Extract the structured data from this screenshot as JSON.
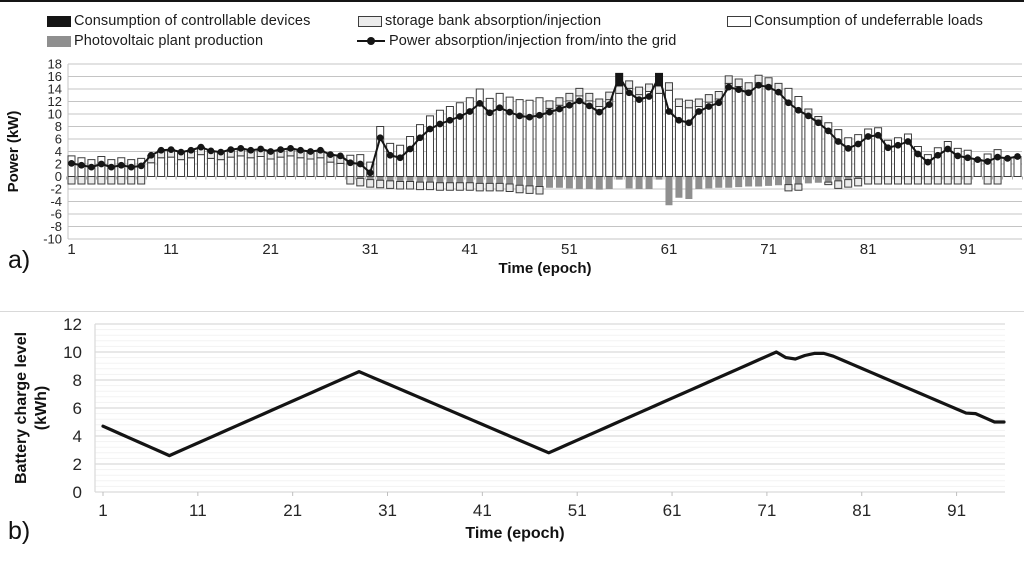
{
  "panel_a_label": "a)",
  "panel_b_label": "b)",
  "legend": {
    "controllable": "Consumption of controllable devices",
    "pv": "Photovoltaic plant production",
    "storage": "storage bank absorption/injection",
    "grid": "Power absorption/injection from/into the grid",
    "undeferrable": "Consumption of undeferrable loads"
  },
  "colors": {
    "black": "#151515",
    "pv_gray": "#8f8f8f",
    "storage_fill": "#ebebeb",
    "bar_stroke": "#3d3d3d",
    "undeferrable_fill": "#ffffff",
    "grid_line_a": "#c4c4c4",
    "grid_line_b_major": "#d9d9d9",
    "grid_line_b_minor": "#f3f3f3",
    "text": "#262626"
  },
  "chart_data": [
    {
      "type": "bar",
      "title": "",
      "xlabel": "Time (epoch)",
      "ylabel": "Power (kW)",
      "ylim": [
        -10,
        18
      ],
      "ytick_step": 2,
      "yticks": [
        18,
        16,
        14,
        12,
        10,
        8,
        6,
        4,
        2,
        0,
        -2,
        -4,
        -6,
        -8,
        -10
      ],
      "xticks": [
        1,
        11,
        21,
        31,
        41,
        51,
        61,
        71,
        81,
        91
      ],
      "epochs": 96,
      "legend_position": "top",
      "grid_on": true,
      "series": [
        {
          "name": "Consumption of undeferrable loads",
          "role": "bar",
          "values": [
            3.3,
            3.0,
            2.7,
            3.2,
            2.7,
            3.0,
            2.7,
            2.9,
            2.2,
            3.0,
            3.1,
            2.7,
            3.0,
            3.5,
            2.9,
            2.7,
            3.1,
            3.3,
            3.0,
            3.2,
            2.8,
            3.1,
            3.3,
            3.0,
            2.8,
            3.0,
            2.3,
            2.1,
            3.4,
            3.5,
            2.3,
            8.0,
            5.3,
            5.0,
            6.4,
            8.3,
            9.7,
            10.6,
            11.2,
            11.8,
            12.6,
            14.0,
            12.5,
            13.3,
            12.7,
            12.3,
            12.2,
            12.6,
            10.9,
            11.4,
            12.1,
            12.9,
            12.1,
            11.2,
            12.3,
            13.3,
            14.1,
            13.1,
            13.6,
            13.3,
            13.8,
            11.2,
            11.0,
            11.2,
            11.9,
            12.4,
            14.9,
            14.4,
            13.8,
            15.0,
            14.6,
            13.7,
            14.1,
            12.8,
            9.8,
            9.0,
            8.6,
            7.5,
            6.2,
            6.7,
            7.6,
            7.8,
            5.8,
            6.2,
            6.8,
            4.8,
            3.5,
            4.6,
            5.6,
            4.5,
            4.2,
            2.7,
            3.6,
            4.3,
            2.9,
            3.2
          ]
        },
        {
          "name": "Consumption of controllable devices",
          "role": "bar",
          "values": [
            0,
            0,
            0,
            0,
            0,
            0,
            0,
            0,
            0,
            0,
            0,
            0,
            0,
            0,
            0,
            0,
            0,
            0,
            0,
            0,
            0,
            0,
            0,
            0,
            0,
            0,
            0,
            0,
            0,
            0,
            0,
            0,
            0,
            0,
            0,
            0,
            0,
            0,
            0,
            0,
            0,
            0,
            0,
            0,
            0,
            0,
            0,
            0,
            0,
            0,
            0,
            0,
            0,
            0,
            0,
            2.0,
            0,
            0,
            0,
            2.0,
            0,
            0,
            0,
            0,
            0,
            0,
            0,
            0,
            0,
            0,
            0,
            0,
            0,
            0,
            0,
            0,
            0,
            0,
            0,
            0,
            0,
            0,
            0,
            0,
            0,
            0,
            0,
            0,
            0,
            0,
            0,
            0,
            0,
            0,
            0,
            0
          ]
        },
        {
          "name": "storage bank absorption/injection",
          "role": "bar",
          "values": [
            -1.2,
            -1.2,
            -1.2,
            -1.2,
            -1.2,
            -1.2,
            -1.2,
            -1.2,
            1.2,
            1.2,
            1.2,
            1.2,
            1.2,
            1.2,
            1.2,
            1.2,
            1.2,
            1.2,
            1.2,
            1.2,
            1.2,
            1.2,
            1.2,
            1.2,
            1.2,
            1.2,
            1.2,
            1.2,
            -1.2,
            -1.2,
            -1.2,
            -1.2,
            -1.2,
            -1.2,
            -1.2,
            -1.2,
            -1.2,
            -1.2,
            -1.2,
            -1.2,
            -1.2,
            -1.2,
            -1.2,
            -1.2,
            -1.2,
            -1.2,
            -1.2,
            -1.2,
            1.2,
            1.2,
            1.2,
            1.2,
            1.2,
            1.2,
            1.2,
            1.2,
            1.2,
            1.2,
            1.2,
            1.2,
            1.2,
            1.2,
            1.2,
            1.2,
            1.2,
            1.2,
            1.2,
            1.2,
            1.2,
            1.2,
            1.2,
            1.2,
            -1.0,
            -1.0,
            1.0,
            0.6,
            -0.4,
            -1.2,
            -1.2,
            -1.2,
            -1.2,
            -1.2,
            -1.2,
            -1.2,
            -1.2,
            -1.2,
            -1.2,
            -1.2,
            -1.2,
            -1.2,
            -1.2,
            0,
            -1.2,
            -1.2,
            0,
            0
          ]
        },
        {
          "name": "Photovoltaic plant production",
          "role": "bar",
          "values": [
            0,
            0,
            0,
            0,
            0,
            0,
            0,
            0,
            0,
            0,
            0,
            0,
            0,
            0,
            0,
            0,
            0,
            0,
            0,
            0,
            0,
            0,
            0,
            0,
            0,
            0,
            0,
            0,
            0,
            -0.3,
            -0.5,
            -0.6,
            -0.7,
            -0.8,
            -0.8,
            -0.9,
            -0.9,
            -1.0,
            -1.0,
            -1.0,
            -1.0,
            -1.1,
            -1.1,
            -1.1,
            -1.2,
            -1.4,
            -1.5,
            -1.6,
            -1.8,
            -1.8,
            -1.9,
            -2.0,
            -2.0,
            -2.1,
            -2.0,
            -0.5,
            -1.9,
            -2.0,
            -2.0,
            -0.5,
            -4.6,
            -3.4,
            -3.6,
            -2.0,
            -1.9,
            -1.8,
            -1.8,
            -1.7,
            -1.6,
            -1.6,
            -1.5,
            -1.4,
            -1.3,
            -1.2,
            -1.1,
            -1.0,
            -0.9,
            -0.7,
            -0.5,
            -0.3,
            0,
            0,
            0,
            0,
            0,
            0,
            0,
            0,
            0,
            0,
            0,
            0,
            0,
            0,
            0,
            0
          ]
        },
        {
          "name": "Power absorption/injection from/into the grid",
          "role": "line",
          "values": [
            2.1,
            1.8,
            1.5,
            2.0,
            1.5,
            1.8,
            1.5,
            1.7,
            3.4,
            4.2,
            4.3,
            3.9,
            4.2,
            4.7,
            4.1,
            3.9,
            4.3,
            4.5,
            4.2,
            4.4,
            4.0,
            4.3,
            4.5,
            4.2,
            4.0,
            4.2,
            3.5,
            3.3,
            2.2,
            2.0,
            0.6,
            6.2,
            3.4,
            3.0,
            4.4,
            6.2,
            7.6,
            8.4,
            9.0,
            9.6,
            10.4,
            11.7,
            10.2,
            11.0,
            10.3,
            9.7,
            9.5,
            9.8,
            10.3,
            10.8,
            11.4,
            12.1,
            11.3,
            10.3,
            11.5,
            16.0,
            13.4,
            12.3,
            12.8,
            16.0,
            10.4,
            9.0,
            8.6,
            10.4,
            11.2,
            11.8,
            14.3,
            13.9,
            13.4,
            14.6,
            14.3,
            13.5,
            11.8,
            10.6,
            9.7,
            8.6,
            7.3,
            5.6,
            4.5,
            5.2,
            6.4,
            6.6,
            4.6,
            5.0,
            5.6,
            3.6,
            2.3,
            3.4,
            4.4,
            3.3,
            3.0,
            2.7,
            2.4,
            3.1,
            2.9,
            3.2
          ]
        }
      ]
    },
    {
      "type": "line",
      "title": "",
      "xlabel": "Time (epoch)",
      "ylabel": "Battery charge level (kWh)",
      "ylim": [
        0,
        12
      ],
      "ytick_step": 2,
      "yticks": [
        12,
        10,
        8,
        6,
        4,
        2,
        0
      ],
      "xticks": [
        1,
        11,
        21,
        31,
        41,
        51,
        61,
        71,
        81,
        91
      ],
      "epochs": 96,
      "grid_on": true,
      "values": [
        4.7,
        4.4,
        4.1,
        3.8,
        3.5,
        3.2,
        2.9,
        2.6,
        2.9,
        3.2,
        3.5,
        3.8,
        4.1,
        4.4,
        4.7,
        5.0,
        5.3,
        5.6,
        5.9,
        6.2,
        6.5,
        6.8,
        7.1,
        7.4,
        7.7,
        8.0,
        8.3,
        8.6,
        8.31,
        8.02,
        7.73,
        7.44,
        7.15,
        6.86,
        6.57,
        6.28,
        5.99,
        5.7,
        5.41,
        5.12,
        4.83,
        4.54,
        4.25,
        3.96,
        3.67,
        3.38,
        3.09,
        2.8,
        3.1,
        3.4,
        3.7,
        4.0,
        4.3,
        4.6,
        4.9,
        5.2,
        5.5,
        5.8,
        6.1,
        6.4,
        6.7,
        7.0,
        7.3,
        7.6,
        7.9,
        8.2,
        8.5,
        8.8,
        9.1,
        9.4,
        9.7,
        10.0,
        9.6,
        9.5,
        9.75,
        9.9,
        9.9,
        9.7,
        9.41,
        9.12,
        8.83,
        8.54,
        8.25,
        7.96,
        7.67,
        7.38,
        7.09,
        6.8,
        6.51,
        6.22,
        5.93,
        5.64,
        5.6,
        5.3,
        5.0,
        5.0
      ]
    }
  ]
}
